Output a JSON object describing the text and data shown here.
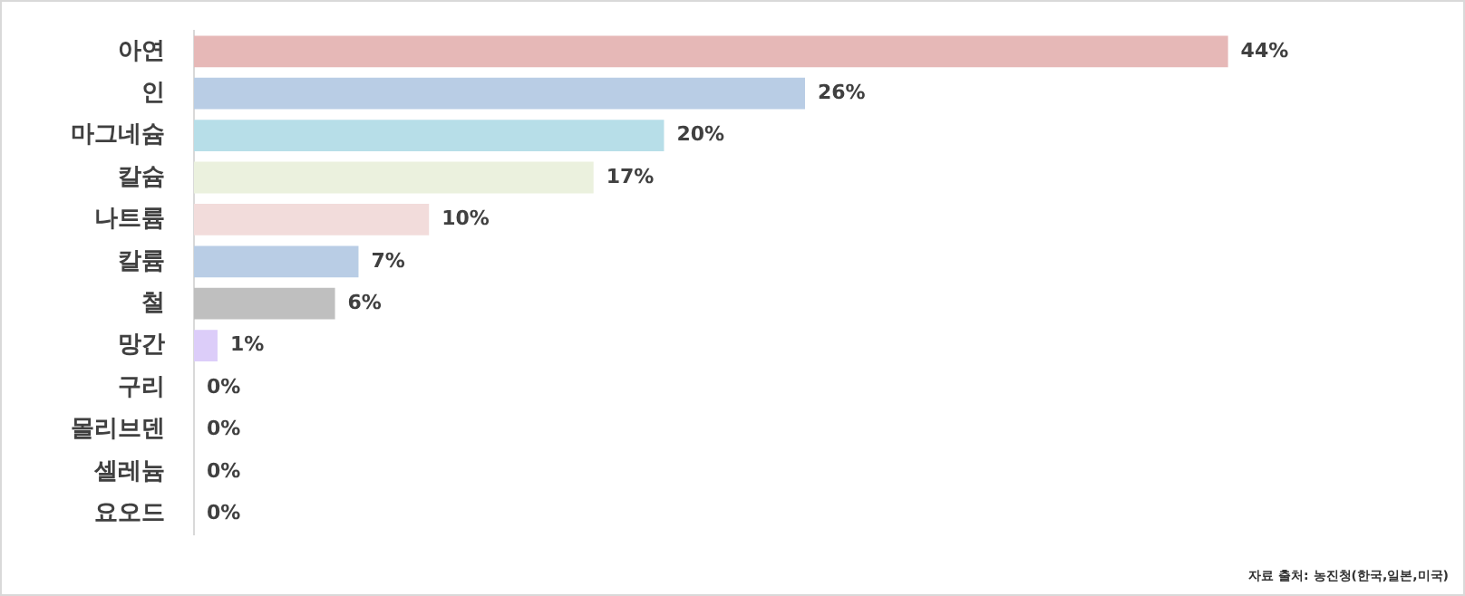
{
  "chart_data": {
    "type": "bar",
    "orientation": "horizontal",
    "categories": [
      "아연",
      "인",
      "마그네슘",
      "칼슘",
      "나트륨",
      "칼륨",
      "철",
      "망간",
      "구리",
      "몰리브덴",
      "셀레늄",
      "요오드"
    ],
    "values": [
      44,
      26,
      20,
      17,
      10,
      7,
      6,
      1,
      0,
      0,
      0,
      0
    ],
    "colors": [
      "#e6b8b7",
      "#b9cde5",
      "#b7dee8",
      "#ebf1de",
      "#f2dcdb",
      "#b9cde5",
      "#bfbfbf",
      "#dccdf9",
      "#d7e4d7",
      "#d9d9d9",
      "#d9d9d9",
      "#d9d9d9"
    ],
    "value_labels": [
      "44%",
      "26%",
      "20%",
      "17%",
      "10%",
      "7%",
      "6%",
      "1%",
      "0%",
      "0%",
      "0%",
      "0%"
    ],
    "annotations": [
      "자료 출처: 농진청(한국,일본,미국)"
    ]
  }
}
